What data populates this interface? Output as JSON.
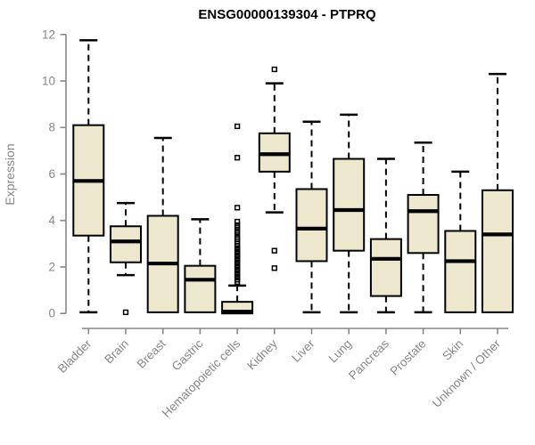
{
  "chart_data": {
    "type": "boxplot",
    "title": "ENSG00000139304 - PTPRQ",
    "ylabel": "Expression",
    "xlabel": "",
    "ylim": [
      0,
      12
    ],
    "yticks": [
      0,
      2,
      4,
      6,
      8,
      10,
      12
    ],
    "grid": false,
    "legend": "none",
    "box_fill_color": "#ece7cd",
    "box_border_color": "#000000",
    "axis_color": "#878787",
    "categories": [
      "Bladder",
      "Brain",
      "Breast",
      "Gastric",
      "Hematopoietic cells",
      "Kidney",
      "Liver",
      "Lung",
      "Pancreas",
      "Prostate",
      "Skin",
      "Unknown / Other"
    ],
    "series": [
      {
        "name": "Bladder",
        "whisker_low": 0.05,
        "q1": 3.35,
        "median": 5.7,
        "q3": 8.1,
        "whisker_high": 11.75,
        "outliers": []
      },
      {
        "name": "Brain",
        "whisker_low": 1.65,
        "q1": 2.2,
        "median": 3.1,
        "q3": 3.75,
        "whisker_high": 4.75,
        "outliers": [
          0.05
        ]
      },
      {
        "name": "Breast",
        "whisker_low": 0.05,
        "q1": 0.05,
        "median": 2.15,
        "q3": 4.2,
        "whisker_high": 7.55,
        "outliers": []
      },
      {
        "name": "Gastric",
        "whisker_low": 0.05,
        "q1": 0.05,
        "median": 1.45,
        "q3": 2.05,
        "whisker_high": 4.05,
        "outliers": []
      },
      {
        "name": "Hematopoietic cells",
        "whisker_low": 0.0,
        "q1": 0.0,
        "median": 0.08,
        "q3": 0.5,
        "whisker_high": 1.2,
        "outliers": [
          1.35,
          1.45,
          1.55,
          1.6,
          1.7,
          1.75,
          1.85,
          1.9,
          2.0,
          2.05,
          2.15,
          2.2,
          2.3,
          2.35,
          2.45,
          2.5,
          2.6,
          2.65,
          2.75,
          2.8,
          2.9,
          3.0,
          3.1,
          3.2,
          3.3,
          3.45,
          3.55,
          3.7,
          3.8,
          3.95,
          4.55,
          6.7,
          8.05
        ]
      },
      {
        "name": "Kidney",
        "whisker_low": 4.35,
        "q1": 6.1,
        "median": 6.85,
        "q3": 7.75,
        "whisker_high": 9.9,
        "outliers": [
          10.5,
          2.7,
          1.95
        ]
      },
      {
        "name": "Liver",
        "whisker_low": 0.05,
        "q1": 2.25,
        "median": 3.65,
        "q3": 5.35,
        "whisker_high": 8.25,
        "outliers": []
      },
      {
        "name": "Lung",
        "whisker_low": 0.05,
        "q1": 2.7,
        "median": 4.45,
        "q3": 6.65,
        "whisker_high": 8.55,
        "outliers": []
      },
      {
        "name": "Pancreas",
        "whisker_low": 0.05,
        "q1": 0.75,
        "median": 2.35,
        "q3": 3.2,
        "whisker_high": 6.65,
        "outliers": []
      },
      {
        "name": "Prostate",
        "whisker_low": 0.05,
        "q1": 2.6,
        "median": 4.4,
        "q3": 5.1,
        "whisker_high": 7.35,
        "outliers": []
      },
      {
        "name": "Skin",
        "whisker_low": 0.05,
        "q1": 0.05,
        "median": 2.25,
        "q3": 3.55,
        "whisker_high": 6.1,
        "outliers": []
      },
      {
        "name": "Unknown / Other",
        "whisker_low": 0.05,
        "q1": 0.05,
        "median": 3.4,
        "q3": 5.3,
        "whisker_high": 10.3,
        "outliers": []
      }
    ]
  }
}
